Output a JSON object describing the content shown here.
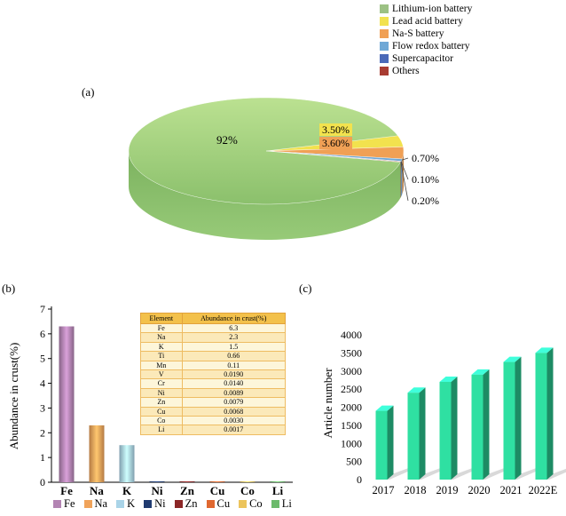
{
  "panels": {
    "a": "(a)",
    "b": "(b)",
    "c": "(c)"
  },
  "chart_data": [
    {
      "type": "pie",
      "panel": "a",
      "style": "3d",
      "labels": [
        "Lithium-ion battery",
        "Lead acid battery",
        "Na-S battery",
        "Flow redox battery",
        "Supercapacitor",
        "Others"
      ],
      "values": [
        92,
        3.5,
        3.6,
        0.7,
        0.1,
        0.2
      ],
      "percent_labels": [
        "92%",
        "3.50%",
        "3.60%",
        "0.70%",
        "0.10%",
        "0.20%"
      ],
      "colors": [
        "#9cc184",
        "#f2e24e",
        "#f0a055",
        "#6fa8d6",
        "#4a69b8",
        "#a83c32"
      ],
      "legend_position": "top-right"
    },
    {
      "type": "bar",
      "panel": "b",
      "categories": [
        "Fe",
        "Na",
        "K",
        "Ni",
        "Zn",
        "Cu",
        "Co",
        "Li"
      ],
      "values": [
        6.3,
        2.3,
        1.5,
        0.0089,
        0.0079,
        0.0068,
        0.003,
        0.0017
      ],
      "colors": [
        "#b384b3",
        "#f0a35a",
        "#aad4e8",
        "#1f3a70",
        "#8b2626",
        "#e06830",
        "#ecc45c",
        "#6cba6c"
      ],
      "ylabel": "Abundance in crust(%)",
      "ylim": [
        0,
        7
      ],
      "yticks": [
        0,
        1,
        2,
        3,
        4,
        5,
        6,
        7
      ],
      "legend_position": "bottom",
      "inset_table": {
        "headers": [
          "Element",
          "Abundance in crust(%)"
        ],
        "rows": [
          [
            "Fe",
            "6.3"
          ],
          [
            "Na",
            "2.3"
          ],
          [
            "K",
            "1.5"
          ],
          [
            "Ti",
            "0.66"
          ],
          [
            "Mn",
            "0.11"
          ],
          [
            "V",
            "0.0190"
          ],
          [
            "Cr",
            "0.0140"
          ],
          [
            "Ni",
            "0.0089"
          ],
          [
            "Zn",
            "0.0079"
          ],
          [
            "Cu",
            "0.0068"
          ],
          [
            "Co",
            "0.0030"
          ],
          [
            "Li",
            "0.0017"
          ]
        ]
      }
    },
    {
      "type": "bar",
      "panel": "c",
      "style": "3d",
      "categories": [
        "2017",
        "2018",
        "2019",
        "2020",
        "2021",
        "2022E"
      ],
      "values": [
        1900,
        2400,
        2700,
        2900,
        3250,
        3500
      ],
      "bar_color": "#2fe0a2",
      "shadow_color": "#c9c9c9",
      "ylabel": "Article number",
      "ylim": [
        0,
        4000
      ],
      "yticks": [
        0,
        500,
        1000,
        1500,
        2000,
        2500,
        3000,
        3500,
        4000
      ]
    }
  ]
}
